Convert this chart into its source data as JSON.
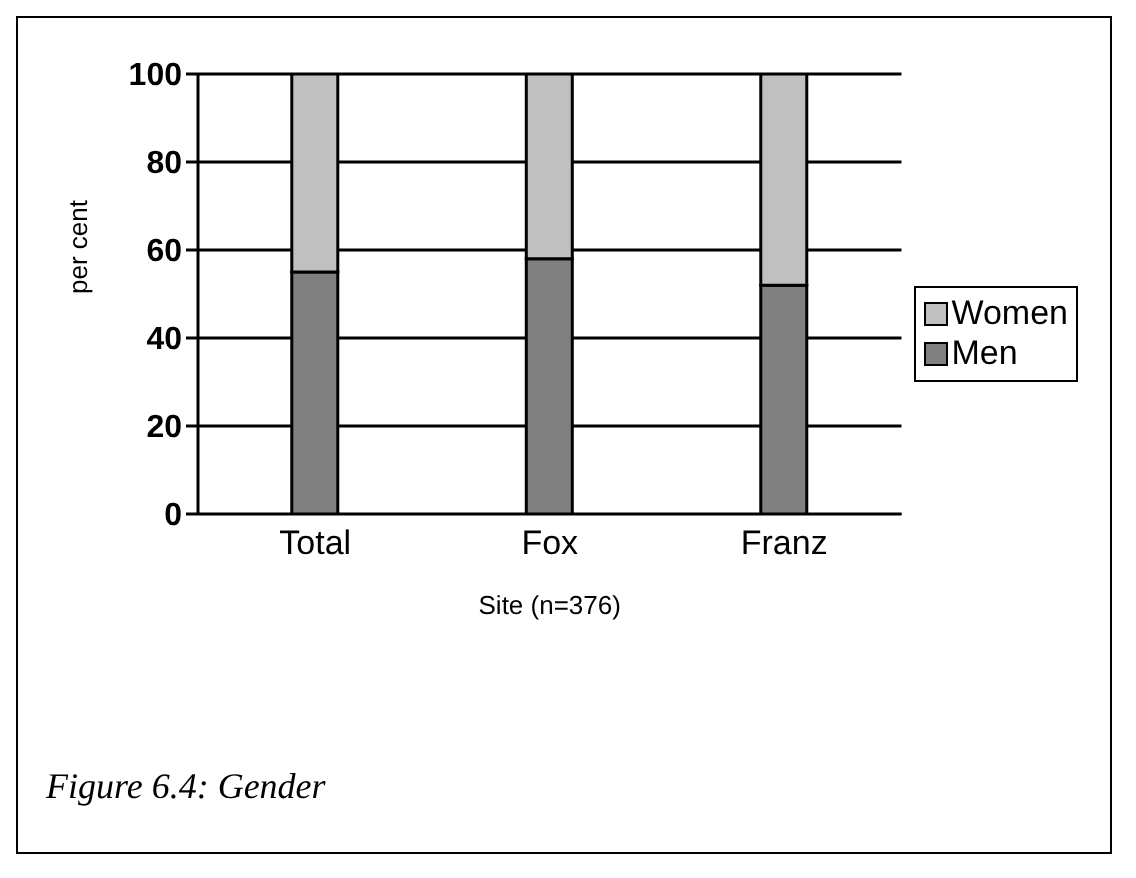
{
  "chart_data": {
    "type": "bar",
    "stacked": true,
    "xlabel": "Site (n=376)",
    "ylabel": "per cent",
    "categories": [
      "Total",
      "Fox",
      "Franz"
    ],
    "series": [
      {
        "name": "Men",
        "color": "#808080",
        "values": [
          55,
          58,
          52
        ]
      },
      {
        "name": "Women",
        "color": "#c0c0c0",
        "values": [
          45,
          42,
          48
        ]
      }
    ],
    "ylim": [
      0,
      100
    ],
    "yticks": [
      0,
      20,
      40,
      60,
      80,
      100
    ],
    "grid": "y",
    "legend": "right",
    "annotations": [
      "Figure 6.4: Gender"
    ]
  }
}
